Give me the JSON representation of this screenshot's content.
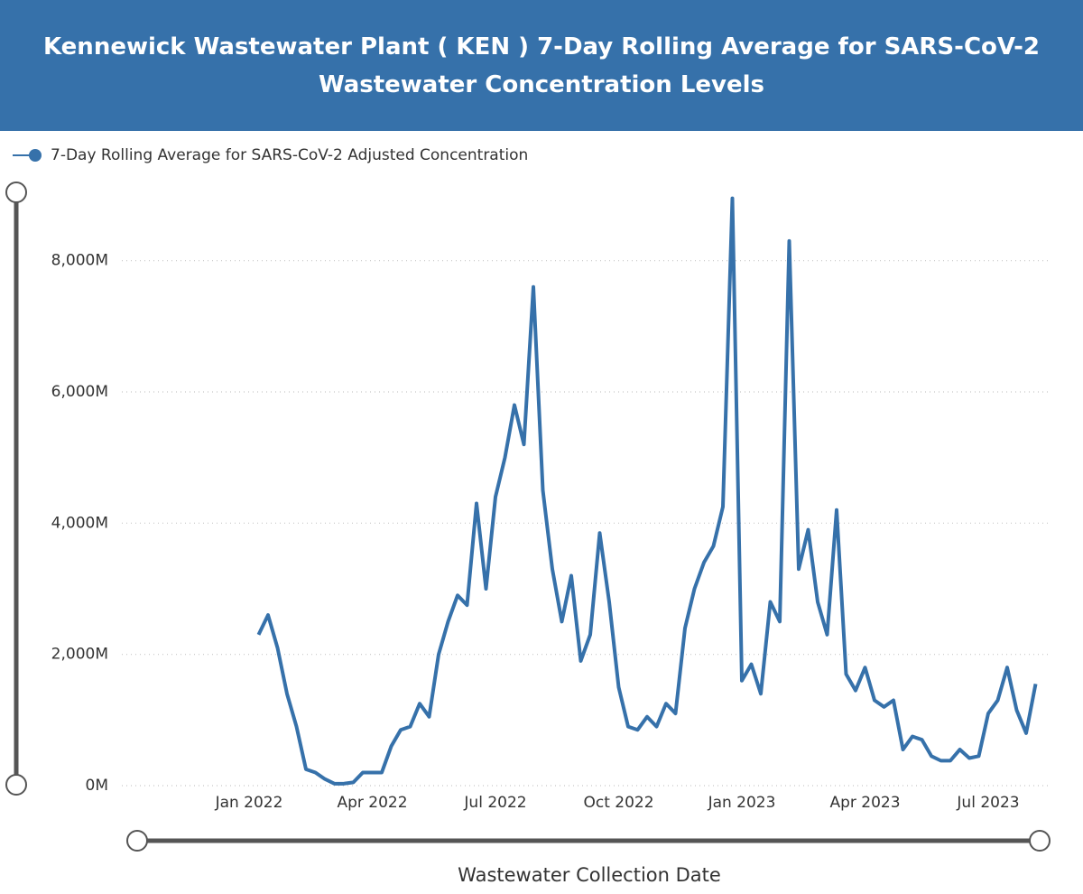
{
  "chart_data": {
    "type": "line",
    "title": "Kennewick Wastewater Plant ( KEN ) 7-Day Rolling Average for SARS-CoV-2 Wastewater Concentration Levels",
    "x_label": "Wastewater Collection Date",
    "categories": [
      "Jan 2022",
      null,
      null,
      null,
      null,
      null,
      null,
      null,
      null,
      null,
      null,
      null,
      null,
      "Apr 2022",
      null,
      null,
      null,
      null,
      null,
      null,
      null,
      null,
      null,
      null,
      null,
      null,
      "Jul 2022",
      null,
      null,
      null,
      null,
      null,
      null,
      null,
      null,
      null,
      null,
      null,
      null,
      "Oct 2022",
      null,
      null,
      null,
      null,
      null,
      null,
      null,
      null,
      null,
      null,
      null,
      null,
      "Jan 2023",
      null,
      null,
      null,
      null,
      null,
      null,
      null,
      null,
      null,
      null,
      null,
      null,
      "Apr 2023",
      null,
      null,
      null,
      null,
      null,
      null,
      null,
      null,
      null,
      null,
      null,
      null,
      "Jul 2023",
      null,
      null,
      null,
      null,
      null
    ],
    "series": [
      {
        "name": "7-Day Rolling Average for SARS-CoV-2 Adjusted Concentration",
        "color": "#3671aa",
        "values": [
          null,
          2300,
          2600,
          2100,
          1400,
          900,
          250,
          200,
          100,
          30,
          30,
          50,
          200,
          200,
          200,
          600,
          850,
          900,
          1250,
          1050,
          2000,
          2500,
          2900,
          2750,
          4300,
          3000,
          4400,
          5000,
          5800,
          5200,
          7600,
          4500,
          3300,
          2500,
          3200,
          1900,
          2300,
          3850,
          2800,
          1500,
          900,
          850,
          1050,
          900,
          1250,
          1100,
          2400,
          3000,
          3400,
          3650,
          4250,
          8950,
          1600,
          1850,
          1400,
          2800,
          2500,
          8300,
          3300,
          3900,
          2800,
          2300,
          4200,
          1700,
          1450,
          1800,
          1300,
          1200,
          1300,
          550,
          750,
          700,
          450,
          380,
          380,
          550,
          420,
          450,
          1100,
          1300,
          1800,
          1150,
          800,
          1550
        ]
      }
    ],
    "ylim": [
      0,
      9000
    ],
    "yticks": [
      {
        "value": 0,
        "label": "0M"
      },
      {
        "value": 2000,
        "label": "2,000M"
      },
      {
        "value": 4000,
        "label": "4,000M"
      },
      {
        "value": 6000,
        "label": "6,000M"
      },
      {
        "value": 8000,
        "label": "8,000M"
      }
    ],
    "grid": true
  }
}
